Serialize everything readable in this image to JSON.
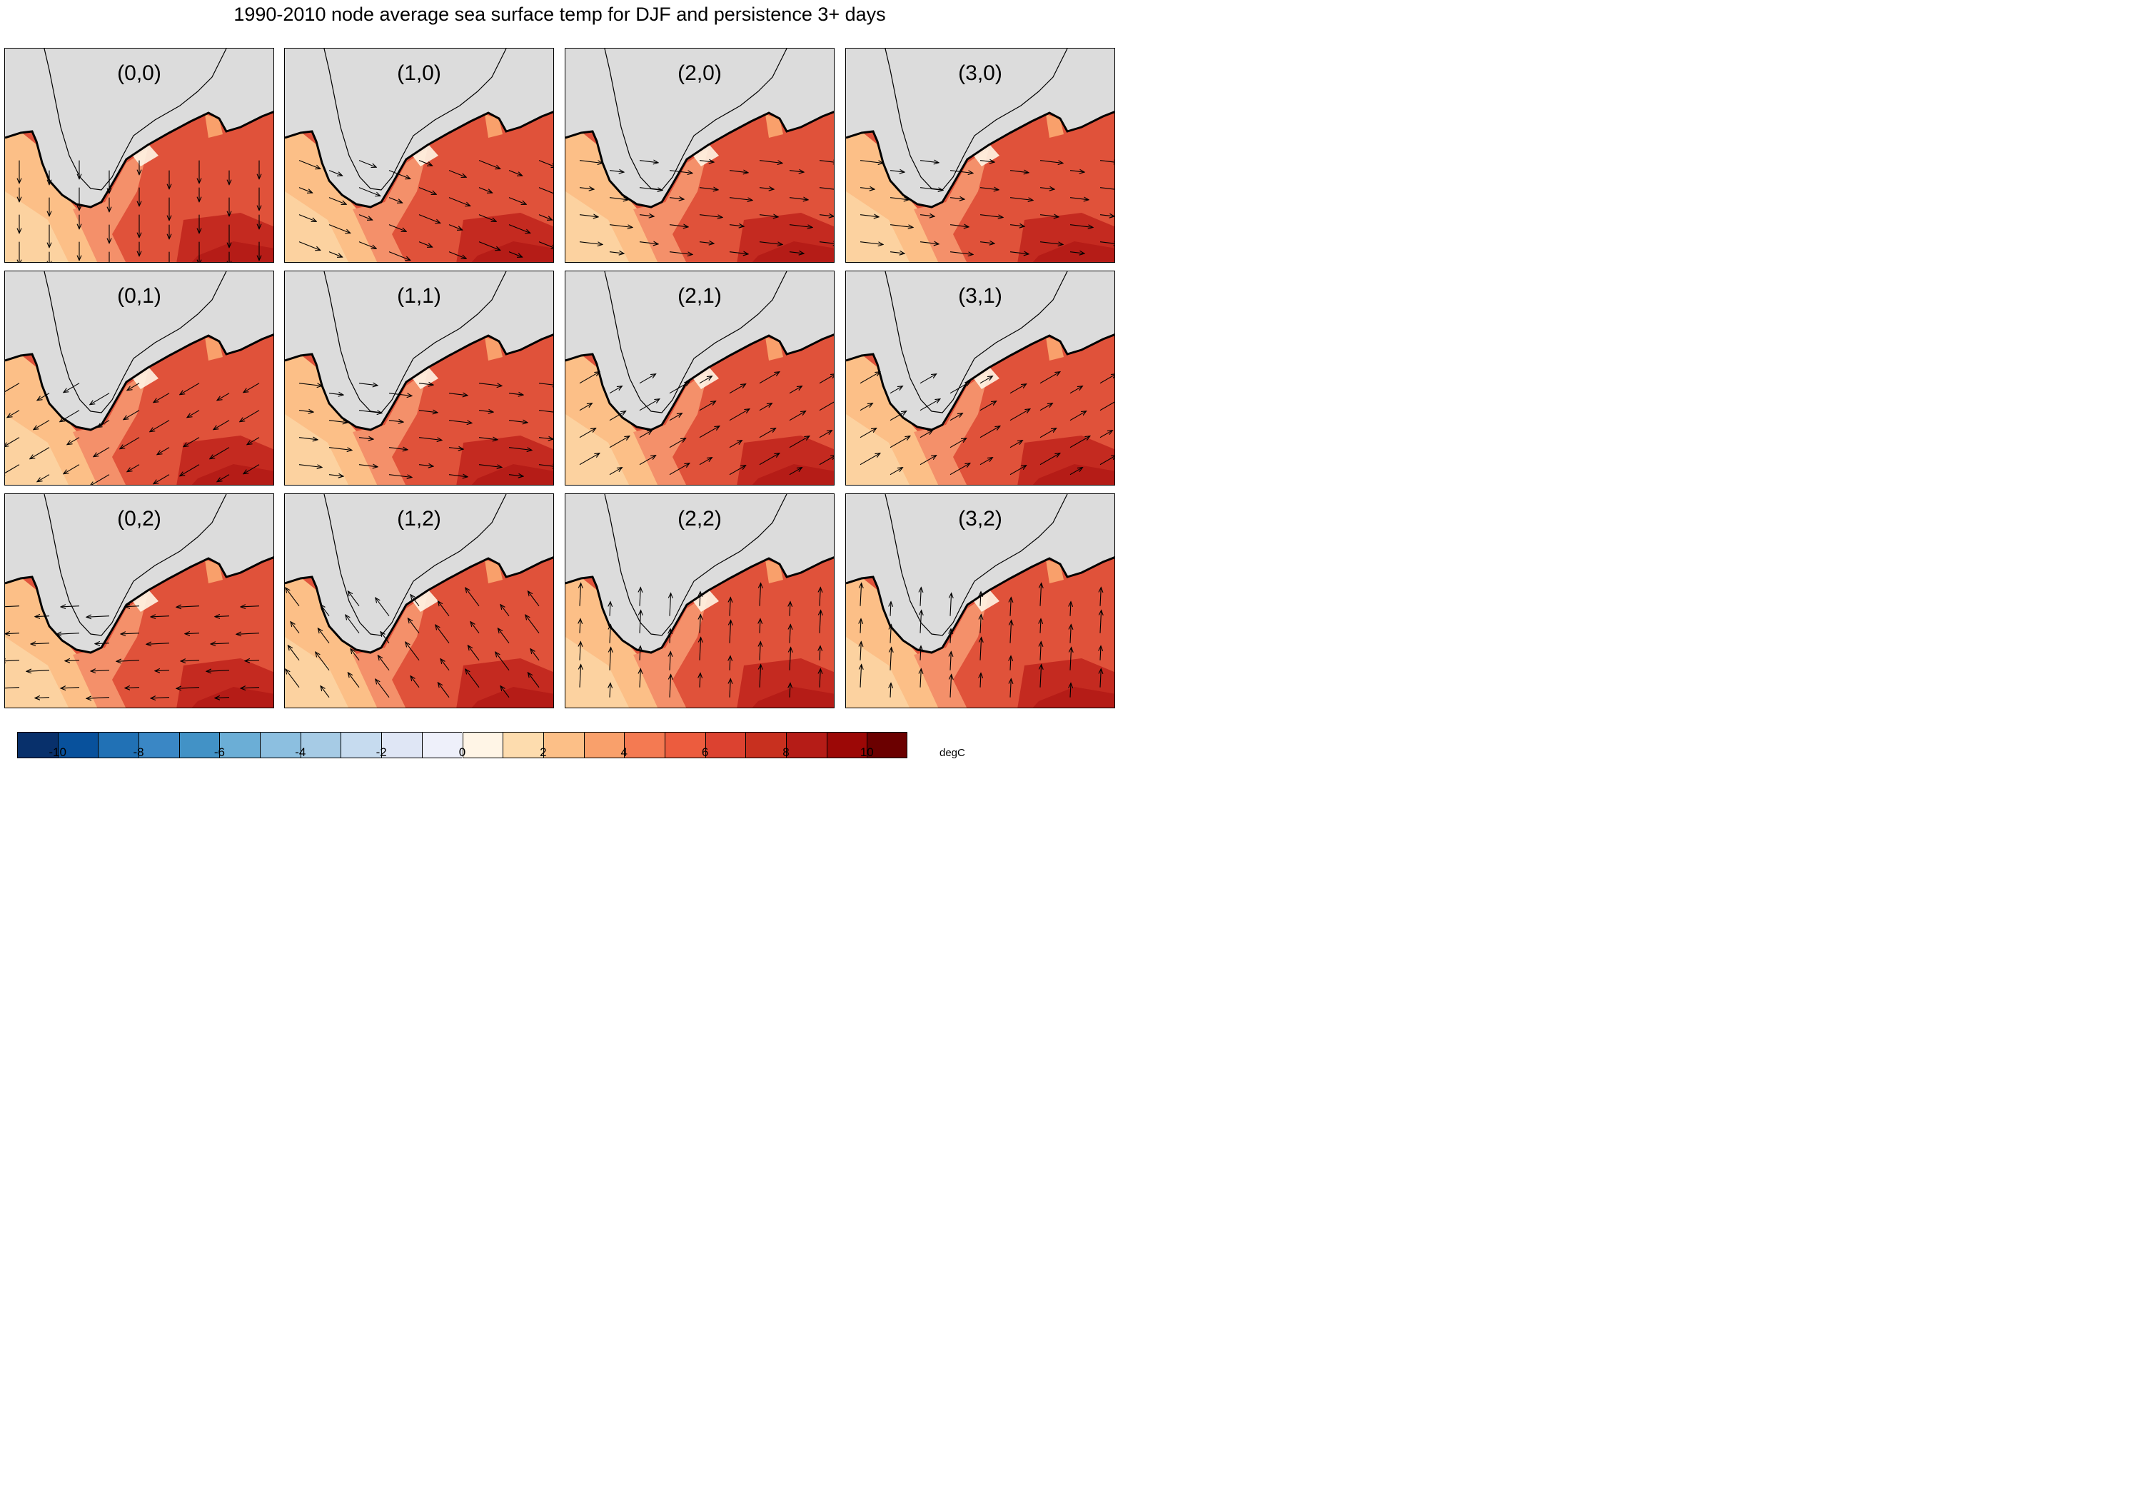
{
  "title": "1990-2010 node average sea surface temp for DJF and persistence 3+ days",
  "panels": [
    {
      "label": "(0,0)",
      "col": 0,
      "row": 0,
      "wind": "south"
    },
    {
      "label": "(1,0)",
      "col": 1,
      "row": 0,
      "wind": "southeast"
    },
    {
      "label": "(2,0)",
      "col": 2,
      "row": 0,
      "wind": "east"
    },
    {
      "label": "(3,0)",
      "col": 3,
      "row": 0,
      "wind": "east"
    },
    {
      "label": "(0,1)",
      "col": 0,
      "row": 1,
      "wind": "southwest"
    },
    {
      "label": "(1,1)",
      "col": 1,
      "row": 1,
      "wind": "east"
    },
    {
      "label": "(2,1)",
      "col": 2,
      "row": 1,
      "wind": "northeast"
    },
    {
      "label": "(3,1)",
      "col": 3,
      "row": 1,
      "wind": "northeast"
    },
    {
      "label": "(0,2)",
      "col": 0,
      "row": 2,
      "wind": "west"
    },
    {
      "label": "(1,2)",
      "col": 1,
      "row": 2,
      "wind": "northwest"
    },
    {
      "label": "(2,2)",
      "col": 2,
      "row": 2,
      "wind": "north"
    },
    {
      "label": "(3,2)",
      "col": 3,
      "row": 2,
      "wind": "north"
    }
  ],
  "colorbar": {
    "units": "degC",
    "ticks": [
      "-10",
      "-8",
      "-6",
      "-4",
      "-2",
      "0",
      "2",
      "4",
      "6",
      "8",
      "10"
    ],
    "colors": [
      "#08306b",
      "#08519c",
      "#2171b5",
      "#3a87c5",
      "#4292c6",
      "#6baed6",
      "#8cbfe0",
      "#a6cbe5",
      "#c6dbef",
      "#dfe6f5",
      "#eef0fa",
      "#fff5e6",
      "#fddcae",
      "#fcbf87",
      "#f9a06b",
      "#f47a52",
      "#ec5c3e",
      "#dc4230",
      "#c8301f",
      "#b51c17",
      "#9c0806",
      "#6b0000"
    ]
  },
  "map_colors": {
    "land": "#dcdcdc",
    "cold_water": "#fcd2a0",
    "mid_water": "#f4906a",
    "warm_water": "#e0523a",
    "hot_water": "#c42a20",
    "ice": "#eef0fa"
  }
}
